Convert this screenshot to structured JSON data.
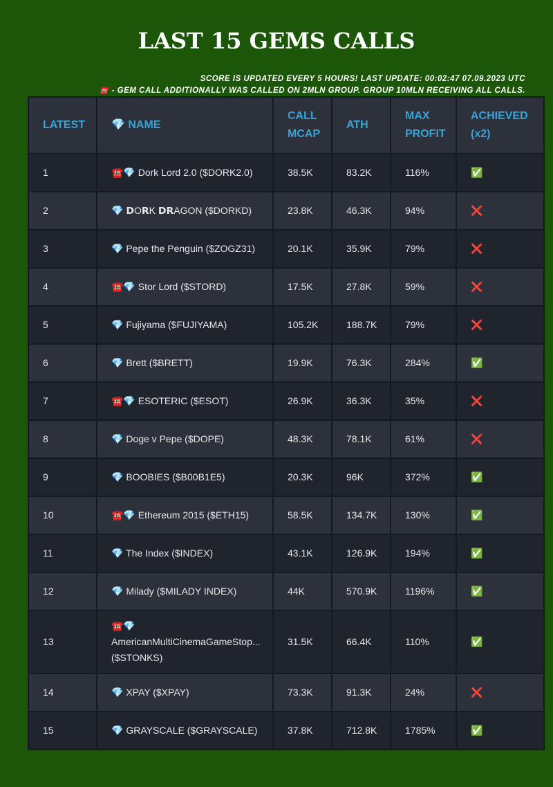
{
  "header": {
    "title": "LAST 15 GEMS CALLS",
    "notes": [
      "SCORE IS UPDATED EVERY 5 HOURS! LAST UPDATE: 00:02:47 07.09.2023 UTC",
      "☎️ - GEM CALL ADDITIONALLY WAS CALLED ON 2MLN GROUP. GROUP 10MLN RECEIVING ALL CALLS."
    ]
  },
  "table": {
    "columns": [
      "LATEST",
      "💎 NAME",
      "CALL MCAP",
      "ATH",
      "MAX PROFIT",
      "ACHIEVED (x2)"
    ],
    "rows": [
      [
        1,
        "☎️💎 Dork Lord 2.0 ($DORK2.0)",
        "38.5K",
        "83.2K",
        "116%",
        "✅"
      ],
      [
        2,
        "💎 𝗗O𝗥K 𝗗𝗥AGON ($DORKD)",
        "23.8K",
        "46.3K",
        "94%",
        "❌"
      ],
      [
        3,
        "💎 Pepe the Penguin ($ZOGZ31)",
        "20.1K",
        "35.9K",
        "79%",
        "❌"
      ],
      [
        4,
        "☎️💎 Stor Lord ($STORD)",
        "17.5K",
        "27.8K",
        "59%",
        "❌"
      ],
      [
        5,
        "💎 Fujiyama ($FUJIYAMA)",
        "105.2K",
        "188.7K",
        "79%",
        "❌"
      ],
      [
        6,
        "💎 Brett ($BRETT)",
        "19.9K",
        "76.3K",
        "284%",
        "✅"
      ],
      [
        7,
        "☎️💎 ESOTERIC ($ESOT)",
        "26.9K",
        "36.3K",
        "35%",
        "❌"
      ],
      [
        8,
        "💎 Doge v Pepe ($DOPE)",
        "48.3K",
        "78.1K",
        "61%",
        "❌"
      ],
      [
        9,
        "💎 BOOBIES ($B00B1E5)",
        "20.3K",
        "96K",
        "372%",
        "✅"
      ],
      [
        10,
        "☎️💎 Ethereum 2015 ($ETH15)",
        "58.5K",
        "134.7K",
        "130%",
        "✅"
      ],
      [
        11,
        "💎 The Index ($INDEX)",
        "43.1K",
        "126.9K",
        "194%",
        "✅"
      ],
      [
        12,
        "💎 Milady ($MILADY INDEX)",
        "44K",
        "570.9K",
        "1196%",
        "✅"
      ],
      [
        13,
        "☎️💎 AmericanMultiCinemaGameStop... ($STONKS)",
        "31.5K",
        "66.4K",
        "110%",
        "✅"
      ],
      [
        14,
        "💎 XPAY ($XPAY)",
        "73.3K",
        "91.3K",
        "24%",
        "❌"
      ],
      [
        15,
        "💎 GRAYSCALE ($GRAYSCALE)",
        "37.8K",
        "712.8K",
        "1785%",
        "✅"
      ]
    ]
  }
}
